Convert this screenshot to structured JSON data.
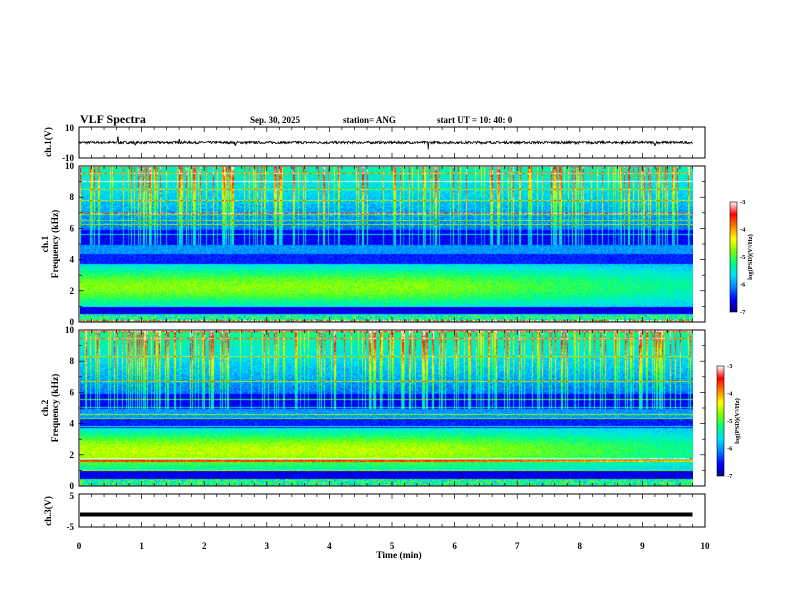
{
  "header": {
    "title": "VLF Spectra",
    "date": "Sep. 30, 2025",
    "station": "station= ANG",
    "start": "start  UT =   10: 40: 0"
  },
  "chart_data": [
    {
      "type": "line",
      "name": "ch1-waveform",
      "ylabel": "ch.1(V)",
      "ylim": [
        -10,
        10
      ],
      "yticks": [
        "10",
        "-10"
      ],
      "xlim": [
        0,
        10
      ],
      "baseline": 0,
      "spikes": [
        [
          0.62,
          3.5
        ],
        [
          0.9,
          -1.5
        ],
        [
          1.6,
          2.0
        ],
        [
          2.5,
          -1.8
        ],
        [
          5.58,
          -4.5
        ],
        [
          9.2,
          -2.0
        ]
      ]
    },
    {
      "type": "heatmap",
      "name": "ch1-spectrogram",
      "ylabel_line1": "ch.1",
      "ylabel_line2": "Frequency  (kHz)",
      "ylim": [
        0,
        10
      ],
      "xlim": [
        0,
        9.8
      ],
      "yticks": [
        "0",
        "2",
        "4",
        "6",
        "8",
        "10"
      ],
      "colorbar": {
        "label": "log(PSD)(V²/Hz)",
        "range": [
          -7,
          -3
        ],
        "ticks": [
          "-3",
          "-4",
          "-5",
          "-6",
          "-7"
        ]
      }
    },
    {
      "type": "heatmap",
      "name": "ch2-spectrogram",
      "ylabel_line1": "ch.2",
      "ylabel_line2": "Frequency  (kHz)",
      "ylim": [
        0,
        10
      ],
      "xlim": [
        0,
        9.8
      ],
      "yticks": [
        "0",
        "2",
        "4",
        "6",
        "8",
        "10"
      ],
      "colorbar": {
        "label": "log(PSD)(V²/Hz)",
        "range": [
          -7,
          -3
        ],
        "ticks": [
          "-3",
          "-4",
          "-5",
          "-6",
          "-7"
        ]
      }
    },
    {
      "type": "line",
      "name": "ch3-waveform",
      "ylabel": "ch.3(V)",
      "ylim": [
        -5,
        5
      ],
      "yticks": [
        "5",
        "-5"
      ],
      "xlim": [
        0,
        9.8
      ],
      "value": -1.2
    }
  ],
  "xaxis": {
    "label": "Time  (min)",
    "range": [
      0,
      10
    ],
    "ticks": [
      "0",
      "1",
      "2",
      "3",
      "4",
      "5",
      "6",
      "7",
      "8",
      "9",
      "10"
    ]
  },
  "colors": {
    "cmap": [
      "#00008a",
      "#0000ff",
      "#0080ff",
      "#00e0ff",
      "#00ff80",
      "#80ff00",
      "#ffff00",
      "#ff8000",
      "#ff0000",
      "#ffffff"
    ]
  }
}
